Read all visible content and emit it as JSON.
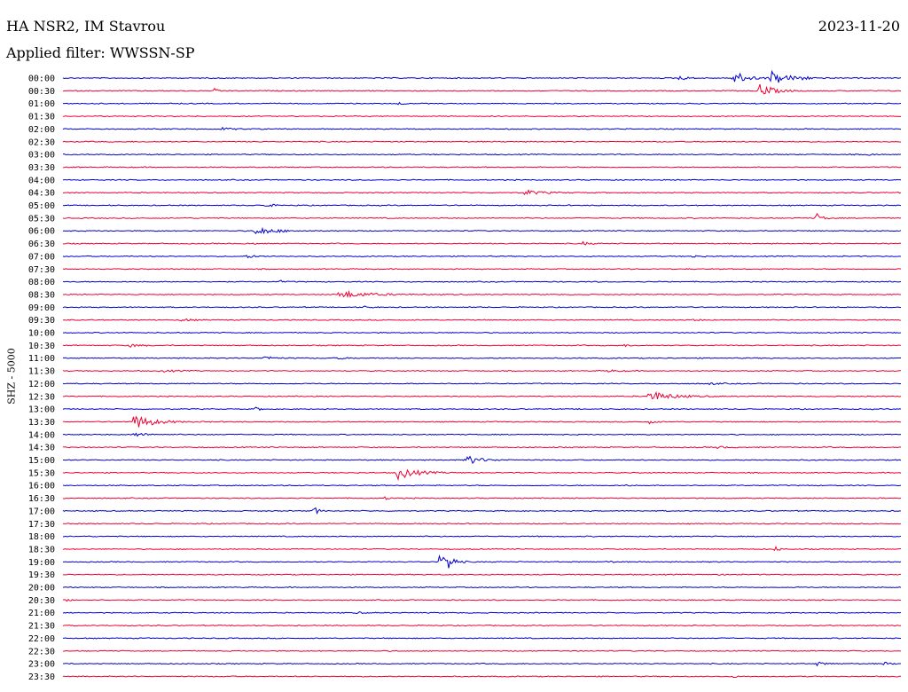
{
  "header": {
    "station": "HA NSR2, IM Stavrou",
    "filter": "Applied filter: WWSSN-SP",
    "date": "2023-11-20"
  },
  "chart_data": {
    "type": "line",
    "title": "HA NSR2, IM Stavrou",
    "subtitle": "Applied filter: WWSSN-SP",
    "ylabel": "SHZ - 5000",
    "colors": [
      "#0000cc",
      "#ee0033"
    ],
    "rows": [
      {
        "label": "00:00",
        "events": [
          [
            0.735,
            0.5,
            8
          ],
          [
            0.8,
            1.3,
            14
          ],
          [
            0.845,
            1.4,
            16
          ],
          [
            0.88,
            0.4,
            6
          ]
        ]
      },
      {
        "label": "00:30",
        "events": [
          [
            0.18,
            0.4,
            6
          ],
          [
            0.83,
            1.4,
            14
          ]
        ]
      },
      {
        "label": "01:00",
        "events": [
          [
            0.4,
            0.3,
            5
          ]
        ]
      },
      {
        "label": "01:30",
        "events": []
      },
      {
        "label": "02:00",
        "events": [
          [
            0.19,
            0.3,
            10
          ]
        ]
      },
      {
        "label": "02:30",
        "events": []
      },
      {
        "label": "03:00",
        "events": [
          [
            0.96,
            0.2,
            6
          ]
        ]
      },
      {
        "label": "03:30",
        "events": []
      },
      {
        "label": "04:00",
        "events": []
      },
      {
        "label": "04:30",
        "events": [
          [
            0.55,
            0.5,
            18
          ]
        ]
      },
      {
        "label": "05:00",
        "events": [
          [
            0.24,
            0.4,
            8
          ]
        ]
      },
      {
        "label": "05:30",
        "events": [
          [
            0.9,
            0.8,
            6
          ]
        ]
      },
      {
        "label": "06:00",
        "events": [
          [
            0.23,
            0.8,
            18
          ]
        ]
      },
      {
        "label": "06:30",
        "events": [
          [
            0.22,
            0.3,
            6
          ],
          [
            0.62,
            0.3,
            8
          ]
        ]
      },
      {
        "label": "07:00",
        "events": [
          [
            0.22,
            0.3,
            8
          ],
          [
            0.75,
            0.2,
            10
          ]
        ]
      },
      {
        "label": "07:30",
        "events": []
      },
      {
        "label": "08:00",
        "events": [
          [
            0.26,
            0.2,
            4
          ]
        ]
      },
      {
        "label": "08:30",
        "events": [
          [
            0.33,
            0.7,
            28
          ]
        ]
      },
      {
        "label": "09:00",
        "events": [
          [
            0.36,
            0.2,
            6
          ]
        ]
      },
      {
        "label": "09:30",
        "events": [
          [
            0.14,
            0.3,
            10
          ],
          [
            0.75,
            0.2,
            8
          ]
        ]
      },
      {
        "label": "10:00",
        "events": []
      },
      {
        "label": "10:30",
        "events": [
          [
            0.08,
            0.3,
            10
          ],
          [
            0.67,
            0.2,
            8
          ]
        ]
      },
      {
        "label": "11:00",
        "events": [
          [
            0.24,
            0.4,
            10
          ],
          [
            0.33,
            0.2,
            6
          ]
        ]
      },
      {
        "label": "11:30",
        "events": [
          [
            0.12,
            0.2,
            12
          ],
          [
            0.65,
            0.2,
            10
          ]
        ]
      },
      {
        "label": "12:00",
        "events": [
          [
            0.77,
            0.2,
            10
          ]
        ]
      },
      {
        "label": "12:30",
        "events": [
          [
            0.7,
            1.0,
            22
          ]
        ]
      },
      {
        "label": "13:00",
        "events": [
          [
            0.23,
            0.3,
            6
          ]
        ]
      },
      {
        "label": "13:30",
        "events": [
          [
            0.085,
            1.5,
            18
          ],
          [
            0.7,
            0.3,
            6
          ]
        ]
      },
      {
        "label": "14:00",
        "events": [
          [
            0.085,
            0.5,
            10
          ]
        ]
      },
      {
        "label": "14:30",
        "events": [
          [
            0.78,
            0.2,
            12
          ]
        ]
      },
      {
        "label": "15:00",
        "events": [
          [
            0.48,
            1.0,
            14
          ]
        ]
      },
      {
        "label": "15:30",
        "events": [
          [
            0.4,
            1.2,
            18
          ]
        ]
      },
      {
        "label": "16:00",
        "events": [
          [
            0.67,
            0.3,
            4
          ]
        ]
      },
      {
        "label": "16:30",
        "events": [
          [
            0.385,
            0.3,
            4
          ]
        ]
      },
      {
        "label": "17:00",
        "events": [
          [
            0.3,
            0.8,
            4
          ]
        ]
      },
      {
        "label": "17:30",
        "events": []
      },
      {
        "label": "18:00",
        "events": []
      },
      {
        "label": "18:30",
        "events": [
          [
            0.85,
            0.5,
            4
          ]
        ]
      },
      {
        "label": "19:00",
        "events": [
          [
            0.45,
            1.7,
            8
          ],
          [
            0.46,
            1.0,
            6
          ],
          [
            0.65,
            0.3,
            4
          ]
        ]
      },
      {
        "label": "19:30",
        "events": [
          [
            0.78,
            0.2,
            4
          ]
        ]
      },
      {
        "label": "20:00",
        "events": []
      },
      {
        "label": "20:30",
        "events": [
          [
            0.005,
            0.3,
            4
          ]
        ]
      },
      {
        "label": "21:00",
        "events": [
          [
            0.35,
            0.2,
            6
          ]
        ]
      },
      {
        "label": "21:30",
        "events": []
      },
      {
        "label": "22:00",
        "events": []
      },
      {
        "label": "22:30",
        "events": []
      },
      {
        "label": "23:00",
        "events": [
          [
            0.9,
            0.3,
            10
          ],
          [
            0.98,
            0.3,
            6
          ]
        ]
      },
      {
        "label": "23:30",
        "events": [
          [
            0.8,
            0.2,
            4
          ]
        ]
      }
    ]
  }
}
